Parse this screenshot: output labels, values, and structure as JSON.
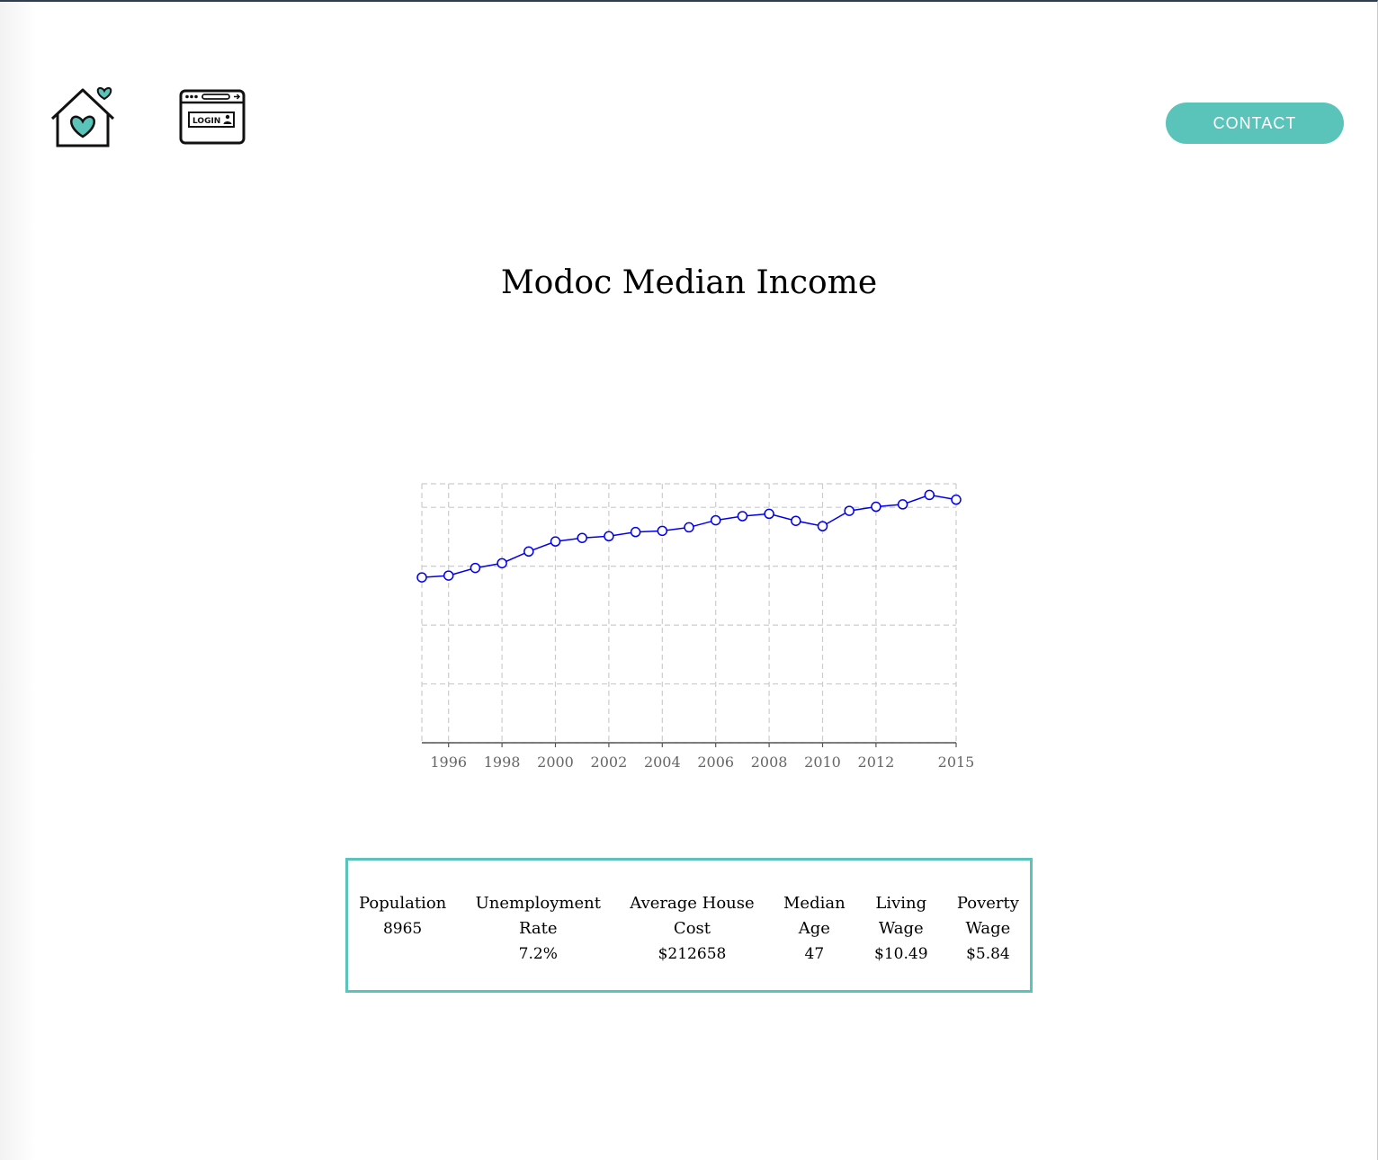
{
  "nav": {
    "home_icon": "home-heart-icon",
    "login_icon": "login-window-icon",
    "login_icon_text": "LOGIN",
    "contact_label": "CONTACT"
  },
  "colors": {
    "accent": "#5bc4ba",
    "line": "#0000ee",
    "grid": "#cccccc"
  },
  "page": {
    "title": "Modoc Median Income"
  },
  "chart_data": {
    "type": "line",
    "title": "Modoc Median Income",
    "xlabel": "",
    "ylabel": "",
    "grid": true,
    "x": [
      1995,
      1996,
      1997,
      1998,
      1999,
      2000,
      2001,
      2002,
      2003,
      2004,
      2005,
      2006,
      2007,
      2008,
      2009,
      2010,
      2011,
      2012,
      2013,
      2014,
      2015
    ],
    "values": [
      48.1,
      48.4,
      49.7,
      50.5,
      52.5,
      54.2,
      54.8,
      55.1,
      55.8,
      56.0,
      56.6,
      57.8,
      58.5,
      58.9,
      57.7,
      56.8,
      59.4,
      60.1,
      60.5,
      62.1,
      61.3
    ],
    "ylim": [
      20,
      64
    ],
    "xlim": [
      1995,
      2015
    ],
    "xtick_labels": [
      "1996",
      "1998",
      "2000",
      "2002",
      "2004",
      "2006",
      "2008",
      "2010",
      "2012",
      "2015"
    ],
    "xtick_values": [
      1996,
      1998,
      2000,
      2002,
      2004,
      2006,
      2008,
      2010,
      2012,
      2015
    ],
    "vgrid_values": [
      1995,
      1996,
      1998,
      2000,
      2002,
      2004,
      2006,
      2008,
      2010,
      2012,
      2015
    ],
    "hgrid_values": [
      20,
      30,
      40,
      50,
      60
    ]
  },
  "stats": [
    {
      "label": "Population",
      "value": "8965"
    },
    {
      "label": "Unemployment\nRate",
      "value": "7.2%"
    },
    {
      "label": "Average House\nCost",
      "value": "$212658"
    },
    {
      "label": "Median\nAge",
      "value": "47"
    },
    {
      "label": "Living\nWage",
      "value": "$10.49"
    },
    {
      "label": "Poverty\nWage",
      "value": "$5.84"
    }
  ]
}
